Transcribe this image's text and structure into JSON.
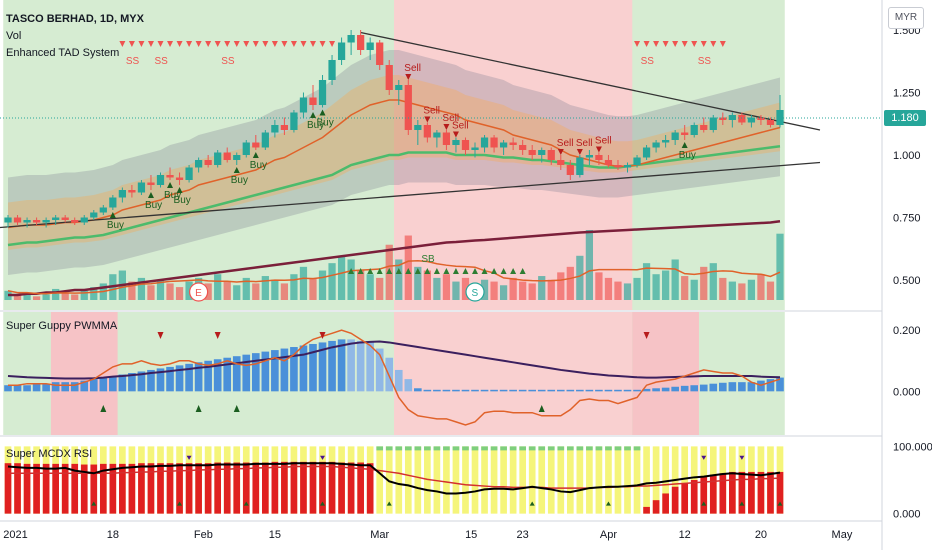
{
  "header": {
    "symbol_line": "TASCO BERHAD, 1D, MYX",
    "vol_label": "Vol",
    "indicator_label": "Enhanced TAD System"
  },
  "panes": {
    "guppy_label": "Super Guppy PWMMA",
    "mcdx_label": "Super MCDX RSI"
  },
  "currency_button": "MYR",
  "price_tag": "1.180",
  "colors": {
    "bull": "#26a69a",
    "bear": "#ef5350",
    "bg_green": "#d6ecd2",
    "bg_red": "#f9d0d0",
    "trendline": "#333333",
    "ma_long": "#7b1f3a",
    "ma_mid": "#4cbb6c",
    "ma_short": "#e0622a"
  },
  "chart_data": [
    {
      "type": "candlestick",
      "title": "TASCO BERHAD, 1D, MYX",
      "ylim": [
        0.38,
        1.58
      ],
      "y_ticks": [
        "1.500",
        "1.250",
        "1.000",
        "0.750",
        "0.500"
      ],
      "x_ticks": [
        "2021",
        "18",
        "Feb",
        "15",
        "Mar",
        "15",
        "23",
        "Apr",
        "12",
        "20",
        "May"
      ],
      "candles": [
        [
          0.73,
          0.76,
          0.71,
          0.75
        ],
        [
          0.75,
          0.76,
          0.72,
          0.73
        ],
        [
          0.73,
          0.75,
          0.71,
          0.74
        ],
        [
          0.74,
          0.75,
          0.72,
          0.73
        ],
        [
          0.73,
          0.75,
          0.71,
          0.74
        ],
        [
          0.74,
          0.76,
          0.72,
          0.75
        ],
        [
          0.75,
          0.76,
          0.73,
          0.74
        ],
        [
          0.74,
          0.75,
          0.72,
          0.73
        ],
        [
          0.73,
          0.76,
          0.72,
          0.75
        ],
        [
          0.75,
          0.78,
          0.74,
          0.77
        ],
        [
          0.77,
          0.8,
          0.76,
          0.79
        ],
        [
          0.79,
          0.84,
          0.78,
          0.83
        ],
        [
          0.83,
          0.87,
          0.81,
          0.86
        ],
        [
          0.86,
          0.88,
          0.83,
          0.85
        ],
        [
          0.85,
          0.9,
          0.84,
          0.89
        ],
        [
          0.89,
          0.92,
          0.86,
          0.88
        ],
        [
          0.88,
          0.93,
          0.87,
          0.92
        ],
        [
          0.92,
          0.95,
          0.9,
          0.91
        ],
        [
          0.91,
          0.93,
          0.88,
          0.9
        ],
        [
          0.9,
          0.96,
          0.89,
          0.95
        ],
        [
          0.95,
          0.99,
          0.93,
          0.98
        ],
        [
          0.98,
          1.0,
          0.95,
          0.96
        ],
        [
          0.96,
          1.02,
          0.95,
          1.01
        ],
        [
          1.01,
          1.03,
          0.97,
          0.98
        ],
        [
          0.98,
          1.01,
          0.96,
          1.0
        ],
        [
          1.0,
          1.06,
          0.99,
          1.05
        ],
        [
          1.05,
          1.08,
          1.02,
          1.03
        ],
        [
          1.03,
          1.1,
          1.02,
          1.09
        ],
        [
          1.09,
          1.14,
          1.07,
          1.12
        ],
        [
          1.12,
          1.15,
          1.08,
          1.1
        ],
        [
          1.1,
          1.18,
          1.09,
          1.17
        ],
        [
          1.17,
          1.25,
          1.15,
          1.23
        ],
        [
          1.23,
          1.28,
          1.18,
          1.2
        ],
        [
          1.2,
          1.32,
          1.19,
          1.3
        ],
        [
          1.3,
          1.4,
          1.28,
          1.38
        ],
        [
          1.38,
          1.47,
          1.36,
          1.45
        ],
        [
          1.45,
          1.5,
          1.4,
          1.48
        ],
        [
          1.48,
          1.5,
          1.4,
          1.42
        ],
        [
          1.42,
          1.47,
          1.38,
          1.45
        ],
        [
          1.45,
          1.46,
          1.34,
          1.36
        ],
        [
          1.36,
          1.38,
          1.24,
          1.26
        ],
        [
          1.26,
          1.3,
          1.2,
          1.28
        ],
        [
          1.28,
          1.3,
          1.08,
          1.1
        ],
        [
          1.1,
          1.14,
          1.04,
          1.12
        ],
        [
          1.12,
          1.13,
          1.05,
          1.07
        ],
        [
          1.07,
          1.1,
          1.03,
          1.09
        ],
        [
          1.09,
          1.1,
          1.02,
          1.04
        ],
        [
          1.04,
          1.07,
          1.01,
          1.06
        ],
        [
          1.06,
          1.07,
          1.0,
          1.02
        ],
        [
          1.02,
          1.05,
          0.99,
          1.03
        ],
        [
          1.03,
          1.08,
          1.01,
          1.07
        ],
        [
          1.07,
          1.08,
          1.01,
          1.03
        ],
        [
          1.03,
          1.06,
          1.0,
          1.05
        ],
        [
          1.05,
          1.07,
          1.02,
          1.04
        ],
        [
          1.04,
          1.06,
          1.0,
          1.02
        ],
        [
          1.02,
          1.04,
          0.98,
          1.0
        ],
        [
          1.0,
          1.03,
          0.97,
          1.02
        ],
        [
          1.02,
          1.03,
          0.96,
          0.98
        ],
        [
          0.98,
          1.0,
          0.94,
          0.96
        ],
        [
          0.96,
          0.98,
          0.9,
          0.92
        ],
        [
          0.92,
          1.0,
          0.91,
          0.99
        ],
        [
          0.99,
          1.02,
          0.96,
          1.0
        ],
        [
          1.0,
          1.01,
          0.96,
          0.98
        ],
        [
          0.98,
          1.0,
          0.95,
          0.96
        ],
        [
          0.96,
          0.98,
          0.94,
          0.95
        ],
        [
          0.95,
          0.97,
          0.93,
          0.96
        ],
        [
          0.96,
          1.0,
          0.95,
          0.99
        ],
        [
          0.99,
          1.04,
          0.98,
          1.03
        ],
        [
          1.03,
          1.06,
          1.01,
          1.05
        ],
        [
          1.05,
          1.08,
          1.03,
          1.06
        ],
        [
          1.06,
          1.1,
          1.04,
          1.09
        ],
        [
          1.09,
          1.12,
          1.06,
          1.08
        ],
        [
          1.08,
          1.13,
          1.07,
          1.12
        ],
        [
          1.12,
          1.15,
          1.09,
          1.1
        ],
        [
          1.1,
          1.16,
          1.09,
          1.15
        ],
        [
          1.15,
          1.17,
          1.12,
          1.14
        ],
        [
          1.14,
          1.17,
          1.11,
          1.16
        ],
        [
          1.16,
          1.17,
          1.12,
          1.13
        ],
        [
          1.13,
          1.16,
          1.11,
          1.15
        ],
        [
          1.15,
          1.16,
          1.12,
          1.14
        ],
        [
          1.14,
          1.15,
          1.11,
          1.12
        ],
        [
          1.12,
          1.24,
          1.11,
          1.18
        ]
      ],
      "ma_short": [
        0.71,
        0.715,
        0.72,
        0.72,
        0.72,
        0.725,
        0.73,
        0.73,
        0.735,
        0.74,
        0.75,
        0.76,
        0.78,
        0.79,
        0.8,
        0.81,
        0.82,
        0.84,
        0.85,
        0.86,
        0.88,
        0.89,
        0.9,
        0.91,
        0.92,
        0.93,
        0.94,
        0.96,
        0.98,
        0.99,
        1.01,
        1.03,
        1.05,
        1.07,
        1.1,
        1.13,
        1.16,
        1.18,
        1.2,
        1.21,
        1.22,
        1.22,
        1.21,
        1.2,
        1.19,
        1.18,
        1.17,
        1.16,
        1.14,
        1.13,
        1.12,
        1.11,
        1.1,
        1.08,
        1.07,
        1.06,
        1.05,
        1.04,
        1.02,
        1.0,
        0.99,
        0.98,
        0.97,
        0.96,
        0.955,
        0.955,
        0.96,
        0.97,
        0.98,
        0.99,
        1.0,
        1.01,
        1.02,
        1.03,
        1.04,
        1.05,
        1.06,
        1.07,
        1.08,
        1.09,
        1.1,
        1.11
      ],
      "ma_mid": [
        0.64,
        0.645,
        0.65,
        0.65,
        0.655,
        0.66,
        0.665,
        0.67,
        0.67,
        0.675,
        0.68,
        0.69,
        0.7,
        0.71,
        0.72,
        0.73,
        0.74,
        0.75,
        0.76,
        0.77,
        0.78,
        0.79,
        0.8,
        0.81,
        0.82,
        0.83,
        0.84,
        0.85,
        0.86,
        0.87,
        0.88,
        0.89,
        0.9,
        0.91,
        0.92,
        0.94,
        0.96,
        0.97,
        0.98,
        0.99,
        1.0,
        1.0,
        1.01,
        1.01,
        1.01,
        1.01,
        1.01,
        1.0,
        1.0,
        1.0,
        1.0,
        0.995,
        0.99,
        0.99,
        0.985,
        0.98,
        0.98,
        0.975,
        0.97,
        0.965,
        0.96,
        0.955,
        0.95,
        0.95,
        0.95,
        0.955,
        0.96,
        0.965,
        0.97,
        0.975,
        0.98,
        0.985,
        0.99,
        0.995,
        1.0,
        1.005,
        1.01,
        1.015,
        1.02,
        1.025,
        1.03,
        1.035
      ],
      "ma_long": [
        0.44,
        0.44,
        0.445,
        0.445,
        0.45,
        0.45,
        0.455,
        0.46,
        0.46,
        0.465,
        0.47,
        0.475,
        0.48,
        0.485,
        0.49,
        0.495,
        0.5,
        0.505,
        0.51,
        0.515,
        0.52,
        0.525,
        0.53,
        0.535,
        0.54,
        0.545,
        0.55,
        0.555,
        0.56,
        0.565,
        0.57,
        0.575,
        0.58,
        0.585,
        0.59,
        0.595,
        0.6,
        0.605,
        0.61,
        0.615,
        0.62,
        0.625,
        0.63,
        0.635,
        0.64,
        0.645,
        0.65,
        0.652,
        0.655,
        0.658,
        0.66,
        0.663,
        0.666,
        0.669,
        0.672,
        0.675,
        0.678,
        0.681,
        0.684,
        0.687,
        0.69,
        0.692,
        0.694,
        0.696,
        0.698,
        0.7,
        0.702,
        0.704,
        0.706,
        0.708,
        0.71,
        0.712,
        0.714,
        0.716,
        0.718,
        0.72,
        0.722,
        0.724,
        0.726,
        0.728,
        0.73,
        0.735
      ],
      "volume": [
        5,
        3,
        4,
        2,
        3,
        6,
        4,
        3,
        5,
        7,
        9,
        14,
        16,
        10,
        12,
        8,
        11,
        9,
        7,
        10,
        12,
        9,
        14,
        10,
        8,
        12,
        9,
        13,
        11,
        9,
        14,
        18,
        12,
        16,
        20,
        24,
        22,
        16,
        14,
        12,
        30,
        22,
        35,
        18,
        16,
        12,
        14,
        10,
        12,
        9,
        11,
        10,
        8,
        12,
        10,
        9,
        13,
        11,
        15,
        18,
        24,
        38,
        15,
        12,
        10,
        9,
        12,
        20,
        14,
        16,
        22,
        13,
        11,
        18,
        20,
        12,
        10,
        9,
        11,
        14,
        10,
        36
      ],
      "signals": {
        "buy": [
          "Buy",
          "Buy",
          "Buy",
          "Buy",
          "Buy",
          "Buy",
          "Buy",
          "Buy",
          "Buy"
        ],
        "sell": [
          "Sell",
          "Sell",
          "Sell",
          "Sell",
          "Sell",
          "Sell",
          "Sell"
        ],
        "ss": [
          "SS",
          "SS",
          "SS",
          "SS",
          "SS"
        ],
        "sb": "SB",
        "event_e": "E",
        "event_s": "S"
      }
    },
    {
      "type": "bar",
      "title": "Super Guppy PWMMA",
      "ylim": [
        -0.12,
        0.24
      ],
      "y_ticks": [
        "0.200",
        "0.000"
      ],
      "hist": [
        0.02,
        0.02,
        0.02,
        0.025,
        0.025,
        0.03,
        0.03,
        0.03,
        0.035,
        0.04,
        0.045,
        0.05,
        0.055,
        0.06,
        0.065,
        0.07,
        0.075,
        0.08,
        0.085,
        0.09,
        0.095,
        0.1,
        0.105,
        0.11,
        0.115,
        0.12,
        0.125,
        0.13,
        0.135,
        0.14,
        0.145,
        0.15,
        0.155,
        0.16,
        0.165,
        0.17,
        0.17,
        0.165,
        0.16,
        0.14,
        0.11,
        0.07,
        0.04,
        0.01,
        0.005,
        0.005,
        0.005,
        0.005,
        0.005,
        0.005,
        0.005,
        0.005,
        0.005,
        0.005,
        0.005,
        0.005,
        0.005,
        0.005,
        0.005,
        0.005,
        0.005,
        0.005,
        0.005,
        0.005,
        0.005,
        0.005,
        0.005,
        0.008,
        0.01,
        0.012,
        0.015,
        0.018,
        0.02,
        0.022,
        0.025,
        0.028,
        0.03,
        0.03,
        0.03,
        0.035,
        0.04,
        0.045
      ],
      "fast": [
        0.02,
        0.02,
        0.025,
        0.025,
        0.025,
        0.02,
        0.02,
        0.02,
        0.03,
        0.04,
        0.06,
        0.08,
        0.09,
        0.09,
        0.1,
        0.09,
        0.085,
        0.09,
        0.1,
        0.1,
        0.09,
        0.085,
        0.09,
        0.1,
        0.09,
        0.085,
        0.09,
        0.1,
        0.11,
        0.1,
        0.12,
        0.15,
        0.17,
        0.18,
        0.19,
        0.2,
        0.19,
        0.17,
        0.15,
        0.12,
        0.05,
        -0.02,
        -0.06,
        -0.08,
        -0.085,
        -0.09,
        -0.09,
        -0.1,
        -0.11,
        -0.1,
        -0.07,
        -0.065,
        -0.065,
        -0.07,
        -0.07,
        -0.07,
        -0.08,
        -0.08,
        -0.08,
        -0.06,
        -0.03,
        -0.025,
        -0.03,
        -0.03,
        -0.04,
        -0.03,
        -0.02,
        0.02,
        0.03,
        0.035,
        0.04,
        0.05,
        0.06,
        0.07,
        0.065,
        0.06,
        0.06,
        0.05,
        0.03,
        0.02,
        0.03,
        0.04
      ],
      "slow": [
        0.05,
        0.048,
        0.046,
        0.045,
        0.044,
        0.043,
        0.042,
        0.042,
        0.042,
        0.043,
        0.045,
        0.048,
        0.05,
        0.053,
        0.056,
        0.06,
        0.063,
        0.066,
        0.07,
        0.073,
        0.077,
        0.08,
        0.084,
        0.088,
        0.092,
        0.096,
        0.1,
        0.104,
        0.108,
        0.112,
        0.116,
        0.12,
        0.128,
        0.136,
        0.144,
        0.15,
        0.156,
        0.16,
        0.162,
        0.163,
        0.16,
        0.155,
        0.15,
        0.145,
        0.14,
        0.135,
        0.13,
        0.125,
        0.12,
        0.115,
        0.11,
        0.105,
        0.1,
        0.095,
        0.09,
        0.085,
        0.08,
        0.075,
        0.07,
        0.066,
        0.062,
        0.058,
        0.055,
        0.052,
        0.05,
        0.048,
        0.046,
        0.045,
        0.045,
        0.046,
        0.047,
        0.048,
        0.049,
        0.05,
        0.05,
        0.05,
        0.05,
        0.05,
        0.05,
        0.048,
        0.047,
        0.046
      ]
    },
    {
      "type": "bar",
      "title": "Super MCDX RSI",
      "ylim": [
        -5,
        108
      ],
      "y_ticks": [
        "100.000",
        "0.000"
      ],
      "retail_layer": "yellow",
      "rsi": [
        70,
        69,
        68,
        68,
        67,
        67,
        68,
        64,
        62,
        60,
        64,
        66,
        68,
        69,
        70,
        70,
        71,
        71,
        72,
        72,
        72,
        72,
        73,
        73,
        73,
        73,
        74,
        74,
        74,
        74,
        75,
        75,
        75,
        75,
        75,
        74,
        73,
        72,
        72,
        60,
        48,
        44,
        42,
        38,
        35,
        33,
        30,
        30,
        31,
        33,
        36,
        37,
        37,
        36,
        38,
        40,
        38,
        36,
        33,
        32,
        35,
        38,
        39,
        40,
        40,
        41,
        42,
        45,
        46,
        48,
        50,
        52,
        54,
        55,
        57,
        59,
        60,
        59,
        58,
        57,
        59,
        61
      ],
      "rsi_avg": [
        60,
        60,
        60,
        60,
        60,
        60,
        60,
        60,
        60,
        60,
        60,
        60,
        61,
        61,
        62,
        62,
        63,
        63,
        64,
        64,
        65,
        65,
        66,
        66,
        67,
        67,
        68,
        68,
        69,
        69,
        70,
        70,
        70,
        70,
        70,
        69,
        68,
        67,
        66,
        64,
        62,
        60,
        57,
        54,
        51,
        49,
        47,
        45,
        43,
        42,
        41,
        40,
        40,
        39,
        39,
        39,
        39,
        38,
        38,
        38,
        38,
        38,
        39,
        39,
        40,
        40,
        41,
        41,
        42,
        43,
        44,
        45,
        46,
        47,
        48,
        49,
        50,
        51,
        51,
        52,
        52,
        53
      ],
      "big_player": [
        75,
        75,
        74,
        74,
        74,
        74,
        74,
        74,
        73,
        73,
        74,
        74,
        74,
        74,
        75,
        75,
        75,
        75,
        75,
        75,
        75,
        75,
        76,
        76,
        76,
        76,
        76,
        76,
        77,
        77,
        77,
        77,
        77,
        77,
        77,
        76,
        76,
        76,
        75,
        0,
        0,
        0,
        0,
        0,
        0,
        0,
        0,
        0,
        0,
        0,
        0,
        0,
        0,
        0,
        0,
        0,
        0,
        0,
        0,
        0,
        0,
        0,
        0,
        0,
        0,
        0,
        0,
        10,
        20,
        30,
        40,
        45,
        50,
        55,
        58,
        60,
        62,
        62,
        62,
        62,
        62,
        62
      ]
    }
  ]
}
